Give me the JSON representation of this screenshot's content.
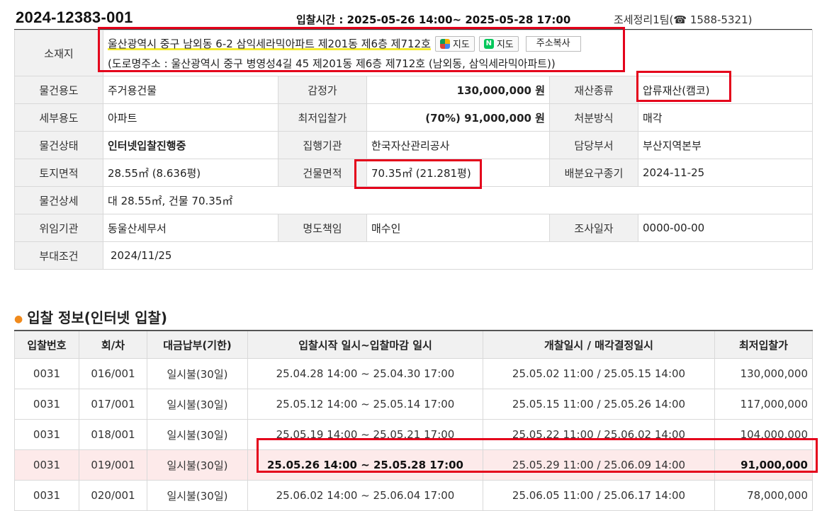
{
  "header": {
    "case_number": "2024-12383-001",
    "bid_time": "입찰시간 : 2025-05-26 14:00~ 2025-05-28 17:00",
    "team": "조세정리1팀(☎ 1588-5321)"
  },
  "property": {
    "address_label": "소재지",
    "address": "울산광역시 중구 남외동 6-2 삼익세라믹아파트 제201동 제6층 제712호",
    "map_daum_label": "지도",
    "map_naver_label": "지도",
    "copy_address_label": "주소복사",
    "road_address": "(도로명주소 : 울산광역시 중구 병영성4길 45 제201동 제6층 제712호 (남외동, 삼익세라믹아파트))",
    "rows": [
      {
        "l1": "물건용도",
        "v1": "주거용건물",
        "l2": "감정가",
        "v2": "130,000,000 원",
        "l3": "재산종류",
        "v3": "압류재산(캠코)"
      },
      {
        "l1": "세부용도",
        "v1": "아파트",
        "l2": "최저입찰가",
        "v2": "(70%) 91,000,000 원",
        "l3": "처분방식",
        "v3": "매각"
      },
      {
        "l1": "물건상태",
        "v1": "인터넷입찰진행중",
        "l2": "집행기관",
        "v2": "한국자산관리공사",
        "l3": "담당부서",
        "v3": "부산지역본부"
      },
      {
        "l1": "토지면적",
        "v1": "28.55㎡ (8.636평)",
        "l2": "건물면적",
        "v2": "70.35㎡ (21.281평)",
        "l3": "배분요구종기",
        "v3": "2024-11-25"
      },
      {
        "l1": "물건상세",
        "v1": "대 28.55㎡, 건물 70.35㎡"
      },
      {
        "l1": "위임기관",
        "v1": "동울산세무서",
        "l2": "명도책임",
        "v2": "매수인",
        "l3": "조사일자",
        "v3": "0000-00-00"
      },
      {
        "l1": "부대조건",
        "v1": "2024/11/25"
      }
    ]
  },
  "bid_section": {
    "title": "입찰 정보(인터넷 입찰)",
    "columns": [
      "입찰번호",
      "회/차",
      "대금납부(기한)",
      "입찰시작 일시~입찰마감 일시",
      "개찰일시 / 매각결정일시",
      "최저입찰가"
    ],
    "rows": [
      [
        "0031",
        "016/001",
        "일시불(30일)",
        "25.04.28 14:00 ~ 25.04.30 17:00",
        "25.05.02 11:00 / 25.05.15 14:00",
        "130,000,000"
      ],
      [
        "0031",
        "017/001",
        "일시불(30일)",
        "25.05.12 14:00 ~ 25.05.14 17:00",
        "25.05.15 11:00 / 25.05.26 14:00",
        "117,000,000"
      ],
      [
        "0031",
        "018/001",
        "일시불(30일)",
        "25.05.19 14:00 ~ 25.05.21 17:00",
        "25.05.22 11:00 / 25.06.02 14:00",
        "104,000,000"
      ],
      [
        "0031",
        "019/001",
        "일시불(30일)",
        "25.05.26 14:00 ~ 25.05.28 17:00",
        "25.05.29 11:00 / 25.06.09 14:00",
        "91,000,000"
      ],
      [
        "0031",
        "020/001",
        "일시불(30일)",
        "25.06.02 14:00 ~ 25.06.04 17:00",
        "25.06.05 11:00 / 25.06.17 14:00",
        "78,000,000"
      ]
    ]
  },
  "colors": {
    "accent_red": "#e4001b",
    "highlight_row": "#fdeaea",
    "price_blue": "#2e6fb0",
    "bullet": "#f08a1c"
  }
}
